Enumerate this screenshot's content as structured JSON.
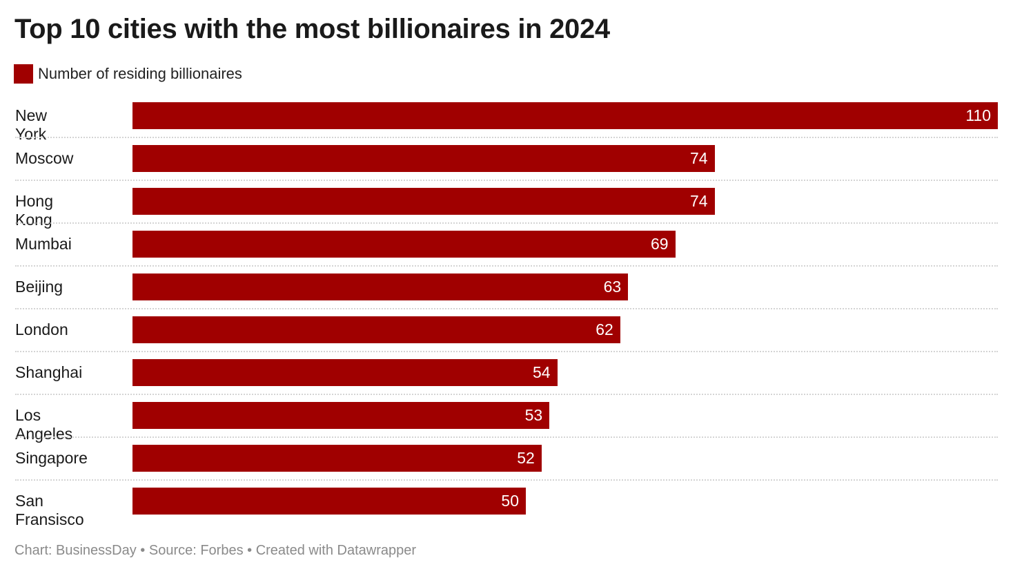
{
  "chart_data": {
    "type": "bar",
    "orientation": "horizontal",
    "title": "Top 10 cities with the most billionaires in 2024",
    "categories": [
      "New York",
      "Moscow",
      "Hong Kong",
      "Mumbai",
      "Beijing",
      "London",
      "Shanghai",
      "Los Angeles",
      "Singapore",
      "San Fransisco"
    ],
    "series": [
      {
        "name": "Number of residing billionaires",
        "values": [
          110,
          74,
          74,
          69,
          63,
          62,
          54,
          53,
          52,
          50
        ],
        "color": "#a00000"
      }
    ],
    "xlim": [
      0,
      110
    ],
    "legend": "top-left",
    "grid": false
  },
  "footer": "Chart: BusinessDay • Source: Forbes • Created with Datawrapper"
}
